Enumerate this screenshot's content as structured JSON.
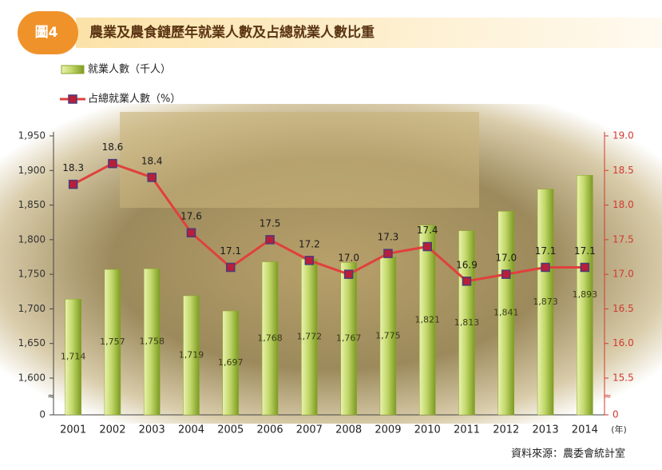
{
  "figure_label": "圖4",
  "chart_data": {
    "type": "bar",
    "title": "農業及農食鏈歷年就業人數及占總就業人數比重",
    "categories": [
      "2001",
      "2002",
      "2003",
      "2004",
      "2005",
      "2006",
      "2007",
      "2008",
      "2009",
      "2010",
      "2011",
      "2012",
      "2013",
      "2014"
    ],
    "x_unit": "(年)",
    "series": [
      {
        "name": "就業人數（千人）",
        "type": "bar",
        "color": "#9cb838",
        "values": [
          1714,
          1757,
          1758,
          1719,
          1697,
          1768,
          1772,
          1767,
          1775,
          1821,
          1813,
          1841,
          1873,
          1893
        ],
        "value_labels": [
          "1,714",
          "1,757",
          "1,758",
          "1,719",
          "1,697",
          "1,768",
          "1,772",
          "1,767",
          "1,775",
          "1,821",
          "1,813",
          "1,841",
          "1,873",
          "1,893"
        ]
      },
      {
        "name": "占總就業人數（%）",
        "type": "line",
        "axis": "y2",
        "color": "#e0403c",
        "values": [
          18.3,
          18.6,
          18.4,
          17.6,
          17.1,
          17.5,
          17.2,
          17.0,
          17.3,
          17.4,
          16.9,
          17.0,
          17.1,
          17.1
        ],
        "value_labels": [
          "18.3",
          "18.6",
          "18.4",
          "17.6",
          "17.1",
          "17.5",
          "17.2",
          "17.0",
          "17.3",
          "17.4",
          "16.9",
          "17.0",
          "17.1",
          "17.1"
        ]
      }
    ],
    "ylim": [
      0,
      1950
    ],
    "yticks": [
      0,
      {
        "value": 1600,
        "label": "1,600"
      },
      {
        "value": 1650,
        "label": "1,650"
      },
      {
        "value": 1700,
        "label": "1,700"
      },
      {
        "value": 1750,
        "label": "1,750"
      },
      {
        "value": 1800,
        "label": "1,800"
      },
      {
        "value": 1850,
        "label": "1,850"
      },
      {
        "value": 1900,
        "label": "1,900"
      },
      {
        "value": 1950,
        "label": "1,950"
      }
    ],
    "y2lim": [
      0,
      19
    ],
    "y2ticks": [
      0,
      15.5,
      {
        "value": 16,
        "label": "16.0"
      },
      16.5,
      {
        "value": 17,
        "label": "17.0"
      },
      17.5,
      {
        "value": 18,
        "label": "18.0"
      },
      18.5,
      {
        "value": 19,
        "label": "19.0"
      }
    ],
    "axis_break": true,
    "grid": false,
    "y2_color": "#d03a32"
  },
  "source": "資料來源：農委會統計室"
}
